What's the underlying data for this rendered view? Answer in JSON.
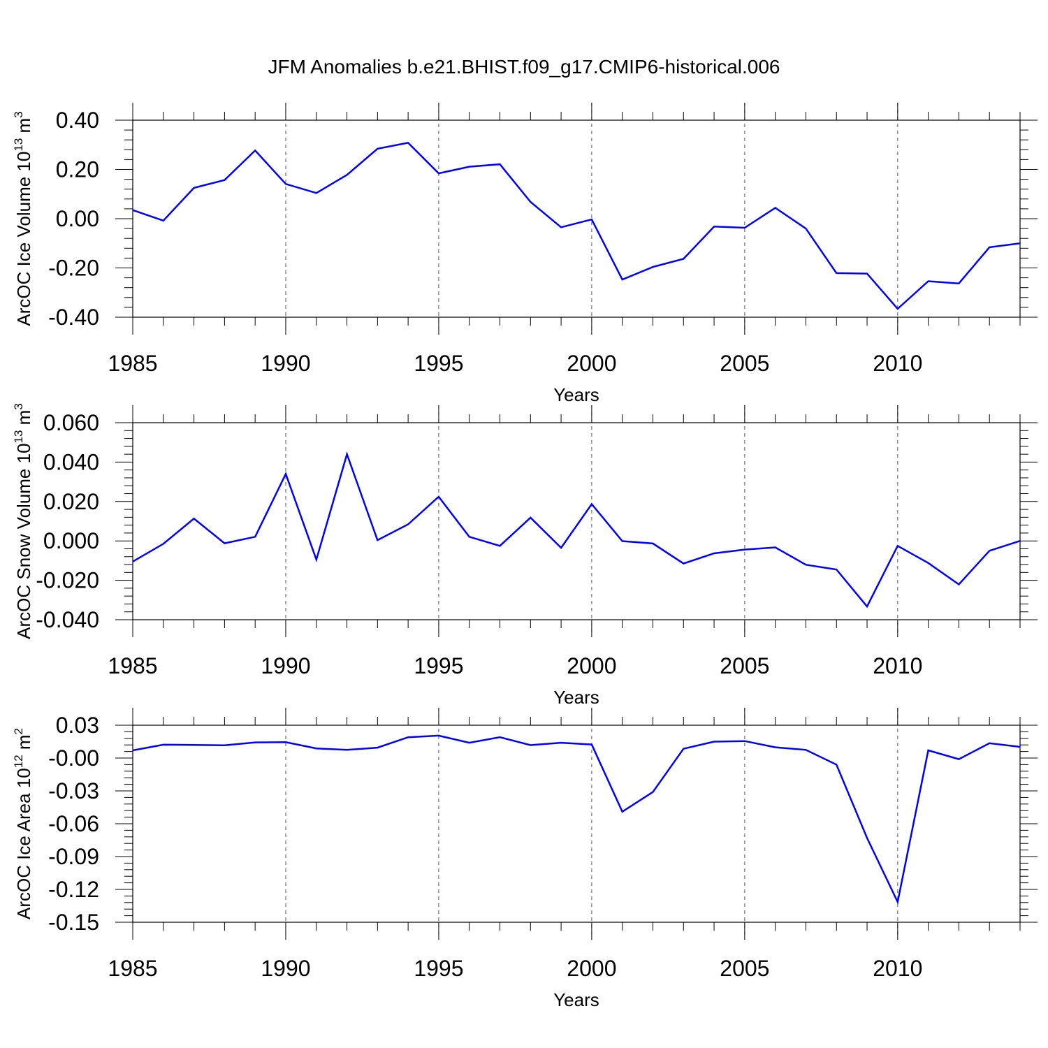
{
  "title": "JFM Anomalies b.e21.BHIST.f09_g17.CMIP6-historical.006",
  "colors": {
    "line": "#0000ff",
    "axes": "#000000",
    "grid": "#555555"
  },
  "chart_data": [
    {
      "type": "line",
      "xlabel": "Years",
      "ylabel_main": "ArcOC Ice Volume 10",
      "ylabel_exp": "13",
      "ylabel_unit": "m",
      "ylabel_unit_exp": "3",
      "ylim": [
        -0.4,
        0.4
      ],
      "xlim": [
        1985,
        2014
      ],
      "yticks": [
        -0.4,
        -0.2,
        0.0,
        0.2,
        0.4
      ],
      "ytick_labels": [
        "-0.40",
        "-0.20",
        "0.00",
        "0.20",
        "0.40"
      ],
      "xticks": [
        1985,
        1990,
        1995,
        2000,
        2005,
        2010
      ],
      "xtick_labels": [
        "1985",
        "1990",
        "1995",
        "2000",
        "2005",
        "2010"
      ],
      "grid_x": [
        1990,
        1995,
        2000,
        2005,
        2010
      ],
      "series": [
        {
          "name": "ArcOC Ice Volume",
          "x": [
            1985,
            1986,
            1987,
            1988,
            1989,
            1990,
            1991,
            1992,
            1993,
            1994,
            1995,
            1996,
            1997,
            1998,
            1999,
            2000,
            2001,
            2002,
            2003,
            2004,
            2005,
            2006,
            2007,
            2008,
            2009,
            2010,
            2011,
            2012,
            2013,
            2014
          ],
          "values": [
            0.035,
            -0.008,
            0.125,
            0.157,
            0.277,
            0.141,
            0.104,
            0.178,
            0.284,
            0.308,
            0.184,
            0.211,
            0.221,
            0.068,
            -0.035,
            -0.003,
            -0.247,
            -0.196,
            -0.163,
            -0.032,
            -0.037,
            0.044,
            -0.04,
            -0.221,
            -0.223,
            -0.366,
            -0.254,
            -0.263,
            -0.116,
            -0.1
          ]
        }
      ]
    },
    {
      "type": "line",
      "xlabel": "Years",
      "ylabel_main": "ArcOC Snow Volume 10",
      "ylabel_exp": "13",
      "ylabel_unit": "m",
      "ylabel_unit_exp": "3",
      "ylim": [
        -0.04,
        0.06
      ],
      "xlim": [
        1985,
        2014
      ],
      "yticks": [
        -0.04,
        -0.02,
        0.0,
        0.02,
        0.04,
        0.06
      ],
      "ytick_labels": [
        "-0.040",
        "-0.020",
        "0.000",
        "0.020",
        "0.040",
        "0.060"
      ],
      "xticks": [
        1985,
        1990,
        1995,
        2000,
        2005,
        2010
      ],
      "xtick_labels": [
        "1985",
        "1990",
        "1995",
        "2000",
        "2005",
        "2010"
      ],
      "grid_x": [
        1990,
        1995,
        2000,
        2005,
        2010
      ],
      "series": [
        {
          "name": "ArcOC Snow Volume",
          "x": [
            1985,
            1986,
            1987,
            1988,
            1989,
            1990,
            1991,
            1992,
            1993,
            1994,
            1995,
            1996,
            1997,
            1998,
            1999,
            2000,
            2001,
            2002,
            2003,
            2004,
            2005,
            2006,
            2007,
            2008,
            2009,
            2010,
            2011,
            2012,
            2013,
            2014
          ],
          "values": [
            -0.0105,
            -0.0015,
            0.0113,
            -0.0012,
            0.0021,
            0.034,
            -0.0095,
            0.044,
            0.0004,
            0.0084,
            0.0224,
            0.0021,
            -0.0025,
            0.0118,
            -0.0035,
            0.0187,
            -0.0001,
            -0.0013,
            -0.0115,
            -0.0063,
            -0.0044,
            -0.0033,
            -0.0121,
            -0.0145,
            -0.0333,
            -0.0025,
            -0.0112,
            -0.0221,
            -0.005,
            0.0
          ]
        }
      ]
    },
    {
      "type": "line",
      "xlabel": "Years",
      "ylabel_main": "ArcOC Ice Area 10",
      "ylabel_exp": "12",
      "ylabel_unit": "m",
      "ylabel_unit_exp": "2",
      "ylim": [
        -0.15,
        0.03
      ],
      "xlim": [
        1985,
        2014
      ],
      "yticks": [
        -0.15,
        -0.12,
        -0.09,
        -0.06,
        -0.03,
        0.0,
        0.03
      ],
      "ytick_labels": [
        "-0.15",
        "-0.12",
        "-0.09",
        "-0.06",
        "-0.03",
        "-0.00",
        "0.03"
      ],
      "xticks": [
        1985,
        1990,
        1995,
        2000,
        2005,
        2010
      ],
      "xtick_labels": [
        "1985",
        "1990",
        "1995",
        "2000",
        "2005",
        "2010"
      ],
      "grid_x": [
        1990,
        1995,
        2000,
        2005,
        2010
      ],
      "series": [
        {
          "name": "ArcOC Ice Area",
          "x": [
            1985,
            1986,
            1987,
            1988,
            1989,
            1990,
            1991,
            1992,
            1993,
            1994,
            1995,
            1996,
            1997,
            1998,
            1999,
            2000,
            2001,
            2002,
            2003,
            2004,
            2005,
            2006,
            2007,
            2008,
            2009,
            2010,
            2011,
            2012,
            2013,
            2014
          ],
          "values": [
            0.007,
            0.0122,
            0.012,
            0.0117,
            0.0143,
            0.0145,
            0.0088,
            0.0075,
            0.0095,
            0.019,
            0.0205,
            0.014,
            0.019,
            0.0118,
            0.014,
            0.0124,
            -0.049,
            -0.031,
            0.0085,
            0.015,
            0.0155,
            0.0098,
            0.0075,
            -0.006,
            -0.073,
            -0.1315,
            0.007,
            -0.001,
            0.0135,
            0.0102
          ]
        }
      ]
    }
  ]
}
